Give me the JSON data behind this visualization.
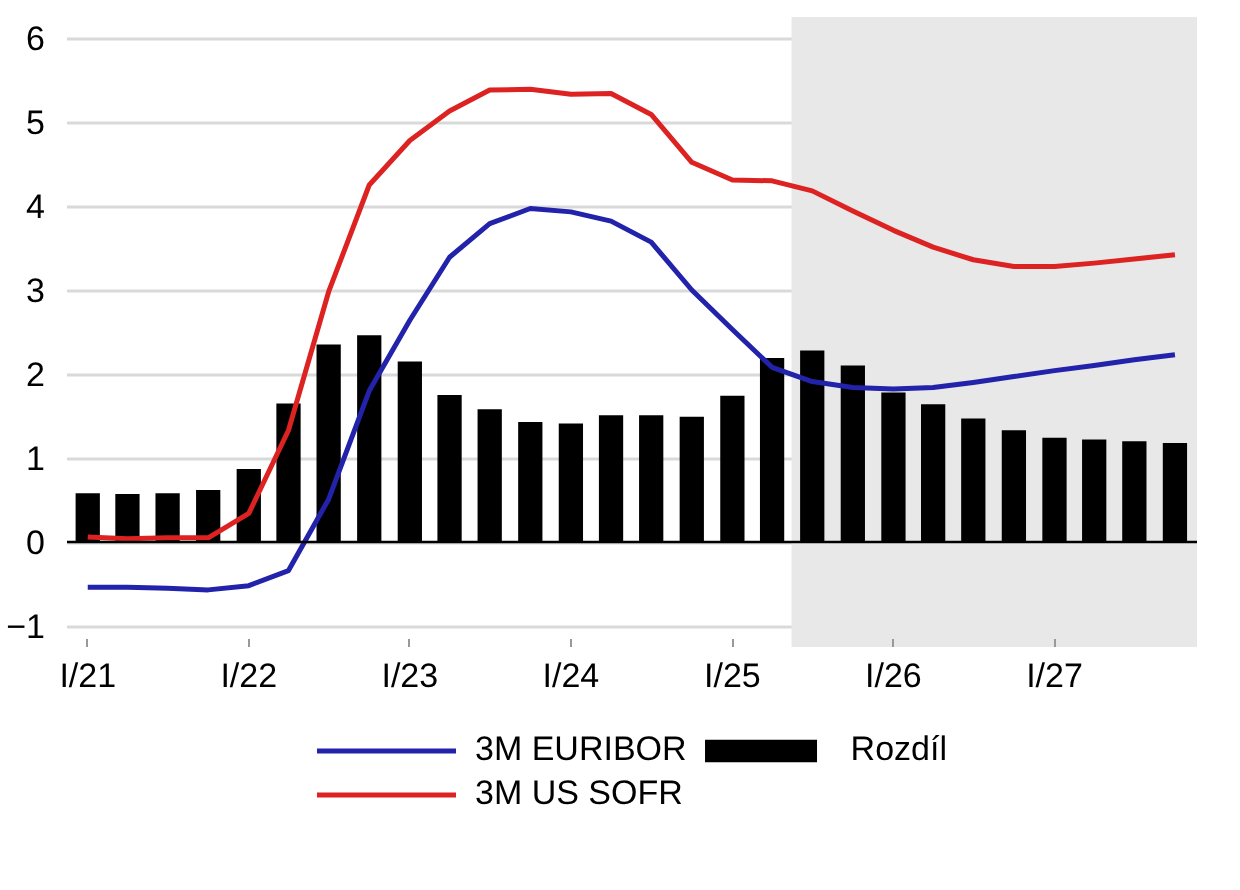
{
  "chart_data": {
    "type": "bar",
    "x": [
      "2021-01",
      "2021-04",
      "2021-07",
      "2021-10",
      "2022-01",
      "2022-04",
      "2022-07",
      "2022-10",
      "2023-01",
      "2023-04",
      "2023-07",
      "2023-10",
      "2024-01",
      "2024-04",
      "2024-07",
      "2024-10",
      "2025-01",
      "2025-04",
      "2025-07",
      "2025-10",
      "2026-01",
      "2026-04",
      "2026-07",
      "2026-10",
      "2027-01",
      "2027-04",
      "2027-07",
      "2027-10"
    ],
    "series": [
      {
        "name": "3M EURIBOR",
        "type": "line",
        "color": "#2222aa",
        "values": [
          -0.54,
          -0.54,
          -0.55,
          -0.57,
          -0.52,
          -0.34,
          0.51,
          1.8,
          2.64,
          3.39,
          3.79,
          3.97,
          3.93,
          3.82,
          3.57,
          3.0,
          2.53,
          2.08,
          1.91,
          1.84,
          1.82,
          1.84,
          1.9,
          1.97,
          2.04,
          2.1,
          2.17,
          2.23
        ]
      },
      {
        "name": "3M US SOFR",
        "type": "line",
        "color": "#dd2222",
        "values": [
          0.06,
          0.04,
          0.05,
          0.05,
          0.34,
          1.33,
          2.98,
          4.25,
          4.78,
          5.13,
          5.38,
          5.39,
          5.33,
          5.34,
          5.09,
          4.52,
          4.31,
          4.3,
          4.18,
          3.94,
          3.71,
          3.51,
          3.36,
          3.28,
          3.28,
          3.32,
          3.37,
          3.42
        ]
      },
      {
        "name": "Rozdíl",
        "color": "#000000",
        "values": [
          0.58,
          0.57,
          0.58,
          0.62,
          0.87,
          1.65,
          2.35,
          2.46,
          2.15,
          1.75,
          1.58,
          1.43,
          1.41,
          1.51,
          1.51,
          1.49,
          1.74,
          2.19,
          2.28,
          2.1,
          1.78,
          1.64,
          1.47,
          1.33,
          1.24,
          1.22,
          1.2,
          1.18
        ]
      }
    ],
    "xlim": [
      "2020-11-15",
      "2027-11-20"
    ],
    "xticks": [
      {
        "value": "2021-01",
        "label": "I/21"
      },
      {
        "value": "2022-01",
        "label": "I/22"
      },
      {
        "value": "2023-01",
        "label": "I/23"
      },
      {
        "value": "2024-01",
        "label": "I/24"
      },
      {
        "value": "2025-01",
        "label": "I/25"
      },
      {
        "value": "2026-01",
        "label": "I/26"
      },
      {
        "value": "2027-01",
        "label": "I/27"
      }
    ],
    "ylim": [
      -1.25,
      6.25
    ],
    "yticks": [
      -1,
      0,
      1,
      2,
      3,
      4,
      5,
      6
    ],
    "grid": "y",
    "legend": "bottom",
    "bands": [
      {
        "axis": "x",
        "from": "2025-05-15",
        "to": "2027-11-20",
        "color": "#e8e8e8"
      }
    ],
    "ref_lines": [
      {
        "axis": "y",
        "value": 0,
        "color": "#000000"
      }
    ]
  }
}
